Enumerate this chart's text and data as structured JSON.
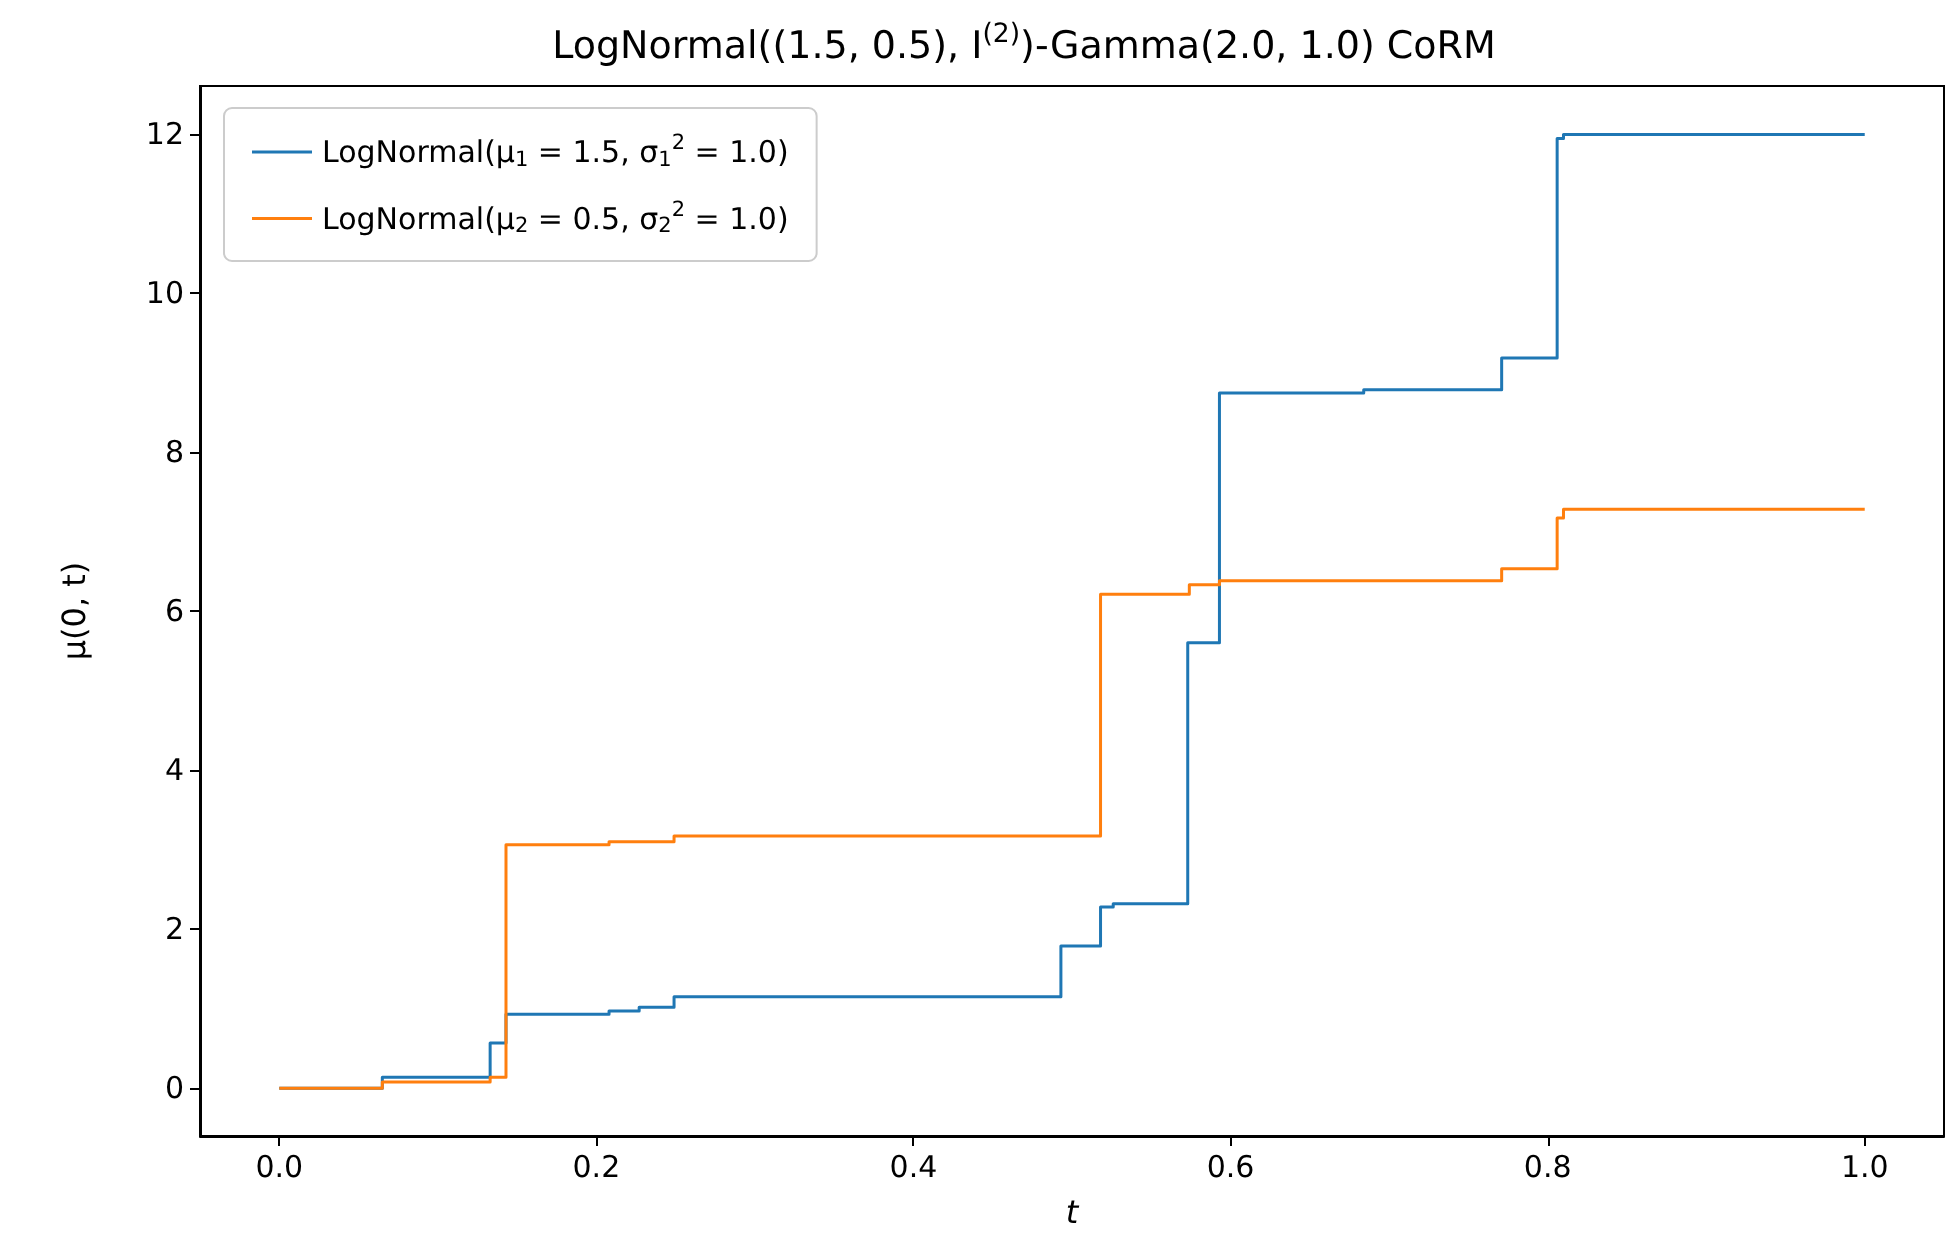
{
  "chart_data": {
    "type": "step",
    "title": "LogNormal((1.5, 0.5), I$^{(2)}$)-Gamma(2.0, 1.0) CoRM",
    "xlabel": "t",
    "ylabel": "μ(0, t)",
    "series": [
      {
        "name": "LogNormal(μ$_{1}$ = 1.5, σ$_{1}$$^{2}$ = 1.0)",
        "color": "#1f77b4",
        "x": [
          0.0,
          0.065,
          0.133,
          0.143,
          0.208,
          0.227,
          0.249,
          0.493,
          0.518,
          0.526,
          0.573,
          0.593,
          0.684,
          0.771,
          0.806,
          0.81,
          1.0
        ],
        "values": [
          0.0,
          0.14,
          0.57,
          0.93,
          0.97,
          1.02,
          1.15,
          1.79,
          2.28,
          2.32,
          5.6,
          8.74,
          8.78,
          9.18,
          11.94,
          11.99,
          11.99
        ]
      },
      {
        "name": "LogNormal(μ$_{2}$ = 0.5, σ$_{2}$$^{2}$ = 1.0)",
        "color": "#ff7f0e",
        "x": [
          0.0,
          0.065,
          0.133,
          0.143,
          0.208,
          0.249,
          0.518,
          0.574,
          0.593,
          0.771,
          0.806,
          0.81,
          1.0
        ],
        "values": [
          0.0,
          0.08,
          0.14,
          3.06,
          3.1,
          3.17,
          6.21,
          6.33,
          6.38,
          6.53,
          7.17,
          7.28,
          7.28
        ]
      }
    ],
    "xlim": [
      -0.05,
      1.05
    ],
    "xticks": [
      {
        "value": 0,
        "label": "0.0"
      },
      0.2,
      0.4,
      0.6,
      0.8,
      {
        "value": 1,
        "label": "1.0"
      }
    ],
    "ylim": [
      -0.6,
      12.6
    ],
    "yticks": [
      0,
      2,
      4,
      6,
      8,
      10,
      12
    ],
    "grid": false,
    "legend": "top left",
    "marker": "none",
    "line_style": "solid"
  }
}
